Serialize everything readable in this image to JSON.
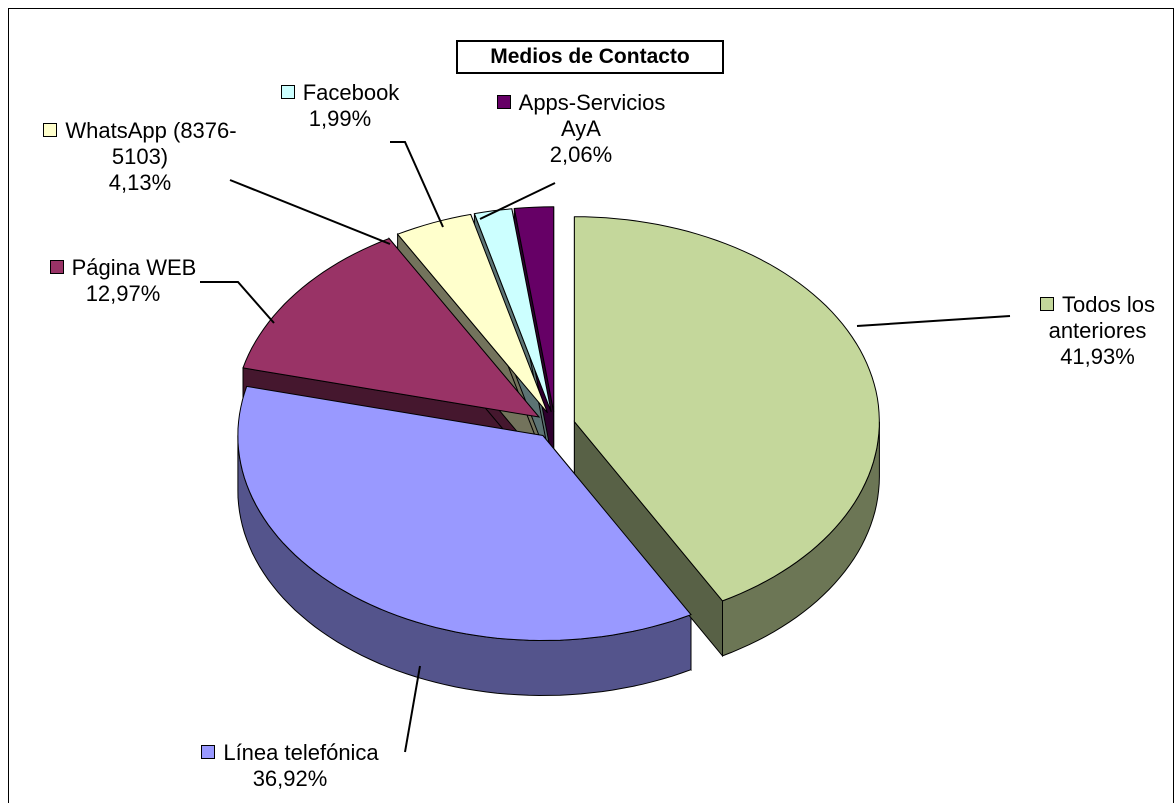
{
  "chart_data": {
    "type": "pie",
    "title": "Medios de Contacto",
    "categories": [
      "Todos los anteriores",
      "Línea telefónica",
      "Página WEB",
      "WhatsApp (8376-5103)",
      "Facebook",
      "Apps-Servicios AyA"
    ],
    "values": [
      41.93,
      36.92,
      12.97,
      4.13,
      1.99,
      2.06
    ],
    "value_labels": [
      "41,93%",
      "36,92%",
      "12,97%",
      "4,13%",
      "1,99%",
      "2,06%"
    ],
    "colors": [
      "#c4d79b",
      "#9999ff",
      "#993366",
      "#ffffcc",
      "#ccffff",
      "#660066"
    ]
  }
}
